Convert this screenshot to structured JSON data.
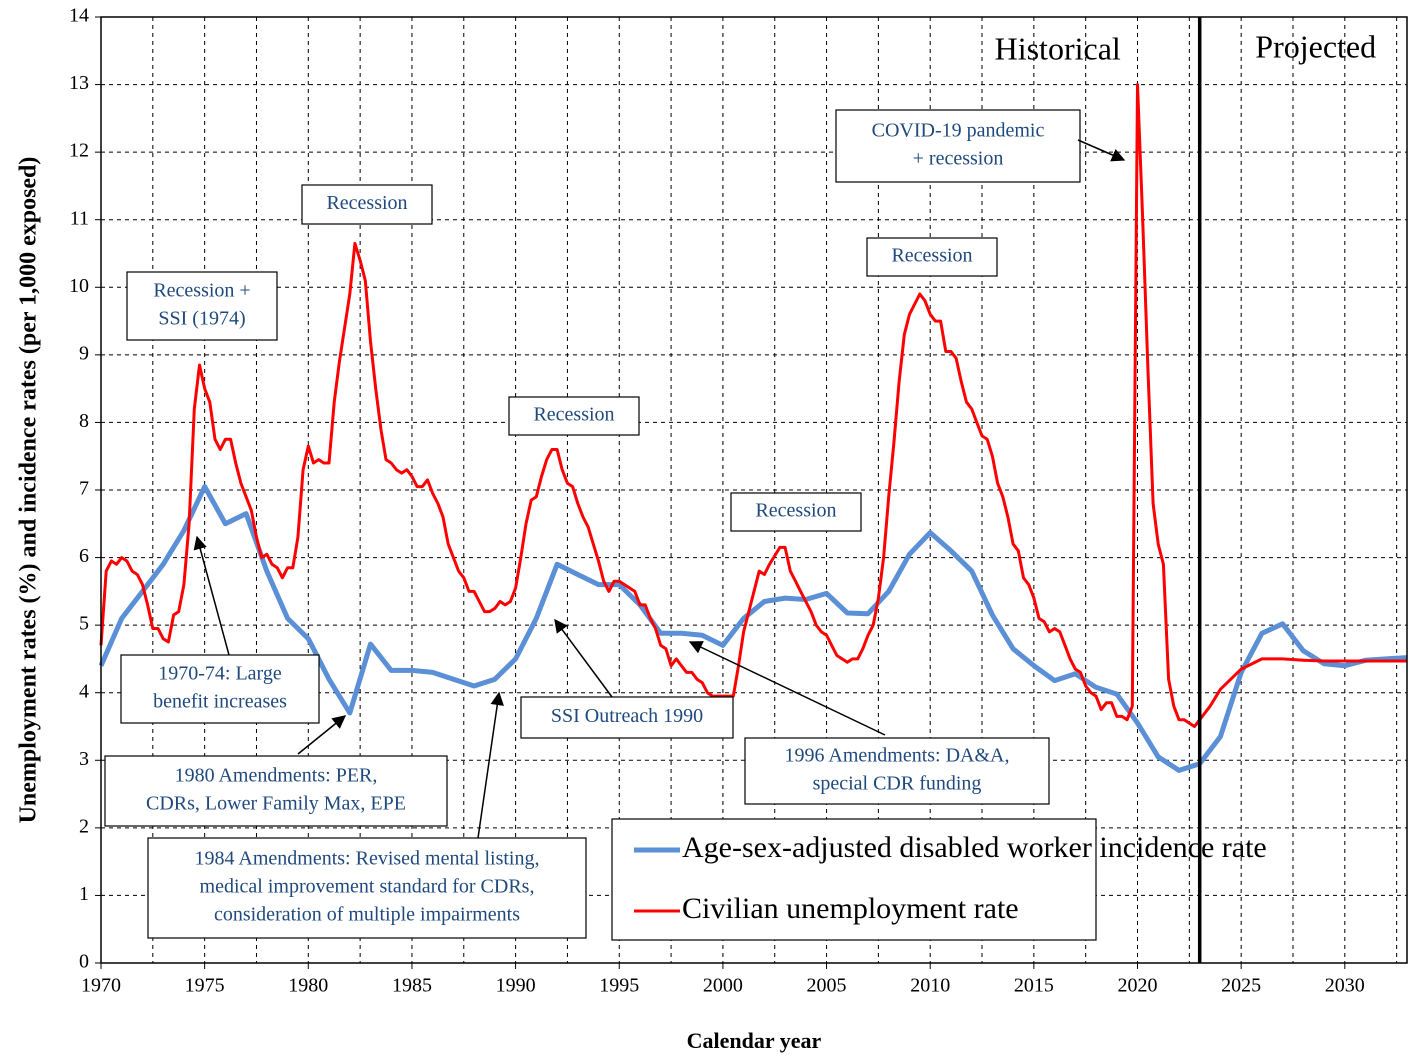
{
  "chart_data": {
    "type": "line",
    "y_label": "Unemployment rates (%) and incidence rates (per 1,000 exposed)",
    "x_label": "Calendar year",
    "xlim": [
      1970,
      2033
    ],
    "xticks": [
      1970,
      1975,
      1980,
      1985,
      1990,
      1995,
      2000,
      2005,
      2010,
      2015,
      2020,
      2025,
      2030
    ],
    "ylim": [
      0,
      14
    ],
    "yticks": [
      0,
      1,
      2,
      3,
      4,
      5,
      6,
      7,
      8,
      9,
      10,
      11,
      12,
      13,
      14
    ],
    "grid": true,
    "legend": "lower right",
    "divider": 2023,
    "period_labels": [
      "Historical",
      "Projected"
    ],
    "series": [
      {
        "name": "Age-sex-adjusted disabled worker incidence rate",
        "color": "#5b8fd6",
        "x": [
          1970,
          1971,
          1972,
          1973,
          1974,
          1975,
          1976,
          1977,
          1978,
          1979,
          1980,
          1981,
          1982,
          1983,
          1984,
          1985,
          1986,
          1987,
          1988,
          1989,
          1990,
          1991,
          1992,
          1993,
          1994,
          1995,
          1996,
          1997,
          1998,
          1999,
          2000,
          2001,
          2002,
          2003,
          2004,
          2005,
          2006,
          2007,
          2008,
          2009,
          2010,
          2011,
          2012,
          2013,
          2014,
          2015,
          2016,
          2017,
          2018,
          2019,
          2020,
          2021,
          2022,
          2023,
          2024,
          2025,
          2026,
          2027,
          2028,
          2029,
          2030,
          2031,
          2032,
          2033
        ],
        "values": [
          4.4,
          5.1,
          5.5,
          5.9,
          6.4,
          7.05,
          6.5,
          6.65,
          5.8,
          5.1,
          4.8,
          4.2,
          3.7,
          4.72,
          4.33,
          4.33,
          4.3,
          4.2,
          4.1,
          4.2,
          4.5,
          5.1,
          5.9,
          5.75,
          5.6,
          5.6,
          5.3,
          4.88,
          4.88,
          4.85,
          4.7,
          5.1,
          5.35,
          5.4,
          5.38,
          5.47,
          5.18,
          5.17,
          5.5,
          6.05,
          6.37,
          6.1,
          5.8,
          5.15,
          4.65,
          4.4,
          4.18,
          4.28,
          4.08,
          3.98,
          3.55,
          3.05,
          2.85,
          2.95,
          3.35,
          4.3,
          4.88,
          5.02,
          4.62,
          4.43,
          4.4,
          4.48,
          4.5,
          4.52
        ]
      },
      {
        "name": "Civilian unemployment rate",
        "color": "#ff0000",
        "x": [
          1970,
          1970.25,
          1970.5,
          1970.75,
          1971,
          1971.25,
          1971.5,
          1971.75,
          1972,
          1972.25,
          1972.5,
          1972.75,
          1973,
          1973.25,
          1973.5,
          1973.75,
          1974,
          1974.25,
          1974.5,
          1974.75,
          1975,
          1975.25,
          1975.5,
          1975.75,
          1976,
          1976.25,
          1976.5,
          1976.75,
          1977,
          1977.25,
          1977.5,
          1977.75,
          1978,
          1978.25,
          1978.5,
          1978.75,
          1979,
          1979.25,
          1979.5,
          1979.75,
          1980,
          1980.25,
          1980.5,
          1980.75,
          1981,
          1981.25,
          1981.5,
          1981.75,
          1982,
          1982.25,
          1982.5,
          1982.75,
          1983,
          1983.25,
          1983.5,
          1983.75,
          1984,
          1984.25,
          1984.5,
          1984.75,
          1985,
          1985.25,
          1985.5,
          1985.75,
          1986,
          1986.25,
          1986.5,
          1986.75,
          1987,
          1987.25,
          1987.5,
          1987.75,
          1988,
          1988.25,
          1988.5,
          1988.75,
          1989,
          1989.25,
          1989.5,
          1989.75,
          1990,
          1990.25,
          1990.5,
          1990.75,
          1991,
          1991.25,
          1991.5,
          1991.75,
          1992,
          1992.25,
          1992.5,
          1992.75,
          1993,
          1993.25,
          1993.5,
          1993.75,
          1994,
          1994.25,
          1994.5,
          1994.75,
          1995,
          1995.25,
          1995.5,
          1995.75,
          1996,
          1996.25,
          1996.5,
          1996.75,
          1997,
          1997.25,
          1997.5,
          1997.75,
          1998,
          1998.25,
          1998.5,
          1998.75,
          1999,
          1999.25,
          1999.5,
          1999.75,
          2000,
          2000.5,
          2000.75,
          2001,
          2001.5,
          2001.75,
          2002,
          2002.25,
          2002.75,
          2003,
          2003.25,
          2003.5,
          2003.75,
          2004,
          2004.25,
          2004.5,
          2004.75,
          2005,
          2005.25,
          2005.5,
          2005.75,
          2006,
          2006.25,
          2006.5,
          2006.75,
          2007,
          2007.25,
          2007.5,
          2007.75,
          2008,
          2008.25,
          2008.5,
          2008.75,
          2009,
          2009.5,
          2009.75,
          2010,
          2010.25,
          2010.5,
          2010.75,
          2011,
          2011.25,
          2011.5,
          2011.75,
          2012,
          2012.25,
          2012.5,
          2012.75,
          2013,
          2013.25,
          2013.5,
          2013.75,
          2014,
          2014.25,
          2014.5,
          2014.75,
          2015,
          2015.25,
          2015.5,
          2015.75,
          2016,
          2016.25,
          2016.5,
          2016.75,
          2017,
          2017.25,
          2017.5,
          2017.75,
          2018,
          2018.25,
          2018.5,
          2018.75,
          2019,
          2019.25,
          2019.5,
          2019.75,
          2020,
          2020.25,
          2020.5,
          2020.75,
          2021,
          2021.25,
          2021.5,
          2021.75,
          2022,
          2022.25,
          2022.5,
          2022.75,
          2023,
          2023.5,
          2024,
          2025,
          2026,
          2027,
          2028,
          2029,
          2030,
          2031,
          2032,
          2033
        ],
        "values": [
          4.7,
          5.8,
          5.95,
          5.9,
          6.0,
          5.95,
          5.8,
          5.75,
          5.6,
          5.3,
          4.95,
          4.95,
          4.8,
          4.75,
          5.15,
          5.2,
          5.6,
          6.5,
          8.2,
          8.85,
          8.5,
          8.3,
          7.75,
          7.6,
          7.75,
          7.75,
          7.4,
          7.1,
          6.9,
          6.7,
          6.3,
          6.0,
          6.05,
          5.9,
          5.85,
          5.7,
          5.85,
          5.85,
          6.3,
          7.3,
          7.65,
          7.4,
          7.45,
          7.4,
          7.4,
          8.3,
          8.9,
          9.4,
          9.9,
          10.65,
          10.4,
          10.1,
          9.2,
          8.5,
          7.9,
          7.45,
          7.4,
          7.3,
          7.25,
          7.3,
          7.2,
          7.05,
          7.05,
          7.15,
          6.95,
          6.8,
          6.6,
          6.2,
          6.0,
          5.8,
          5.7,
          5.5,
          5.5,
          5.35,
          5.2,
          5.2,
          5.25,
          5.35,
          5.3,
          5.35,
          5.55,
          6.0,
          6.5,
          6.85,
          6.9,
          7.2,
          7.45,
          7.6,
          7.6,
          7.3,
          7.1,
          7.05,
          6.8,
          6.6,
          6.45,
          6.2,
          5.95,
          5.65,
          5.5,
          5.65,
          5.65,
          5.6,
          5.55,
          5.5,
          5.3,
          5.3,
          5.1,
          4.95,
          4.7,
          4.65,
          4.4,
          4.5,
          4.4,
          4.3,
          4.3,
          4.2,
          4.15,
          4.0,
          3.95,
          3.95,
          3.95,
          3.95,
          4.4,
          4.9,
          5.5,
          5.8,
          5.75,
          5.9,
          6.15,
          6.15,
          5.8,
          5.65,
          5.5,
          5.35,
          5.2,
          5.0,
          4.9,
          4.85,
          4.7,
          4.55,
          4.5,
          4.45,
          4.5,
          4.5,
          4.65,
          4.85,
          5.0,
          5.4,
          6.0,
          6.9,
          7.7,
          8.6,
          9.3,
          9.6,
          9.9,
          9.8,
          9.6,
          9.5,
          9.5,
          9.05,
          9.05,
          8.95,
          8.6,
          8.3,
          8.2,
          8.0,
          7.8,
          7.75,
          7.5,
          7.1,
          6.9,
          6.6,
          6.2,
          6.1,
          5.7,
          5.6,
          5.4,
          5.1,
          5.05,
          4.9,
          4.95,
          4.9,
          4.7,
          4.5,
          4.35,
          4.3,
          4.1,
          4.0,
          3.95,
          3.75,
          3.85,
          3.85,
          3.65,
          3.65,
          3.6,
          3.8,
          13.0,
          11.0,
          8.8,
          6.8,
          6.2,
          5.9,
          4.2,
          3.8,
          3.6,
          3.6,
          3.55,
          3.5,
          3.6,
          3.8,
          4.05,
          4.35,
          4.5,
          4.5,
          4.48,
          4.47,
          4.47,
          4.47,
          4.47,
          4.47
        ]
      }
    ],
    "annotations": [
      {
        "lines": [
          "Recession +",
          "SSI (1974)"
        ]
      },
      {
        "lines": [
          "Recession"
        ]
      },
      {
        "lines": [
          "Recession"
        ]
      },
      {
        "lines": [
          "Recession"
        ]
      },
      {
        "lines": [
          "Recession"
        ]
      },
      {
        "lines": [
          "COVID-19 pandemic",
          "+ recession"
        ]
      },
      {
        "lines": [
          "1970-74: Large",
          "benefit  increases"
        ]
      },
      {
        "lines": [
          "1980 Amendments: PER,",
          "CDRs, Lower Family Max, EPE"
        ]
      },
      {
        "lines": [
          "1984 Amendments: Revised mental listing,",
          "medical improvement standard for CDRs,",
          "consideration of multiple impairments"
        ]
      },
      {
        "lines": [
          "SSI Outreach 1990"
        ]
      },
      {
        "lines": [
          "1996 Amendments: DA&A,",
          "special CDR funding"
        ]
      }
    ]
  }
}
